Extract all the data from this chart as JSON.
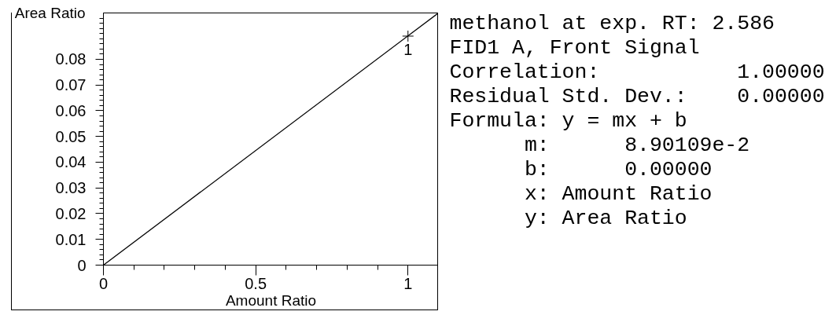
{
  "chart_data": {
    "type": "scatter",
    "xlabel": "Amount Ratio",
    "ylabel": "Area Ratio",
    "xlim": [
      0,
      1.1
    ],
    "ylim": [
      0,
      0.098
    ],
    "xticks": [
      0,
      {
        "value": 0.1,
        "label": null
      },
      {
        "value": 0.2,
        "label": null
      },
      {
        "value": 0.3,
        "label": null
      },
      {
        "value": 0.4,
        "label": null
      },
      0.5,
      {
        "value": 0.6,
        "label": null
      },
      {
        "value": 0.7,
        "label": null
      },
      {
        "value": 0.8,
        "label": null
      },
      {
        "value": 0.9,
        "label": null
      },
      1
    ],
    "yticks": [
      0,
      {
        "value": 0.002,
        "label": null
      },
      {
        "value": 0.004,
        "label": null
      },
      {
        "value": 0.006,
        "label": null
      },
      {
        "value": 0.008,
        "label": null
      },
      0.01,
      {
        "value": 0.012,
        "label": null
      },
      {
        "value": 0.014,
        "label": null
      },
      {
        "value": 0.016,
        "label": null
      },
      {
        "value": 0.018,
        "label": null
      },
      0.02,
      {
        "value": 0.022,
        "label": null
      },
      {
        "value": 0.024,
        "label": null
      },
      {
        "value": 0.026,
        "label": null
      },
      {
        "value": 0.028,
        "label": null
      },
      0.03,
      {
        "value": 0.032,
        "label": null
      },
      {
        "value": 0.034,
        "label": null
      },
      {
        "value": 0.036,
        "label": null
      },
      {
        "value": 0.038,
        "label": null
      },
      0.04,
      {
        "value": 0.042,
        "label": null
      },
      {
        "value": 0.044,
        "label": null
      },
      {
        "value": 0.046,
        "label": null
      },
      {
        "value": 0.048,
        "label": null
      },
      0.05,
      {
        "value": 0.052,
        "label": null
      },
      {
        "value": 0.054,
        "label": null
      },
      {
        "value": 0.056,
        "label": null
      },
      {
        "value": 0.058,
        "label": null
      },
      0.06,
      {
        "value": 0.062,
        "label": null
      },
      {
        "value": 0.064,
        "label": null
      },
      {
        "value": 0.066,
        "label": null
      },
      {
        "value": 0.068,
        "label": null
      },
      0.07,
      {
        "value": 0.072,
        "label": null
      },
      {
        "value": 0.074,
        "label": null
      },
      {
        "value": 0.076,
        "label": null
      },
      {
        "value": 0.078,
        "label": null
      },
      0.08,
      {
        "value": 0.082,
        "label": null
      },
      {
        "value": 0.084,
        "label": null
      },
      {
        "value": 0.086,
        "label": null
      },
      {
        "value": 0.088,
        "label": null
      },
      {
        "value": 0.09,
        "label": null
      },
      {
        "value": 0.092,
        "label": null
      },
      {
        "value": 0.094,
        "label": null
      },
      {
        "value": 0.096,
        "label": null
      }
    ],
    "series": [
      {
        "type": "line",
        "x": [
          0,
          1.1
        ],
        "values": [
          0,
          0.098
        ],
        "color": "#000000",
        "line_style": "solid"
      },
      {
        "x": [
          1
        ],
        "values": [
          0.089
        ],
        "color": "#000000",
        "marker": "cross"
      }
    ],
    "annotations": [
      {
        "text": "1",
        "x": 1,
        "y": 0.089
      },
      "methanol at exp. RT: 2.586",
      "FID1 A, Front Signal",
      "Correlation:           1.00000",
      "Residual Std. Dev.:    0.00000",
      "Formula: y = mx + b",
      "      m:      8.90109e-2",
      "      b:      0.00000",
      "      x: Amount Ratio",
      "      y: Area Ratio"
    ]
  }
}
